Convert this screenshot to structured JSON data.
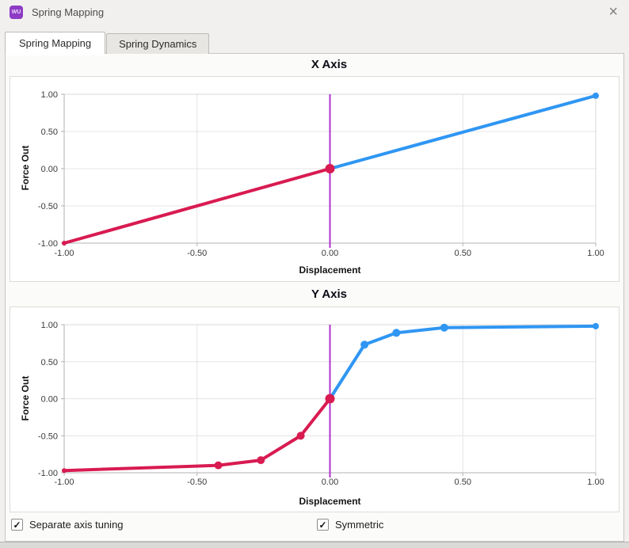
{
  "window": {
    "title": "Spring Mapping",
    "app_icon_text": "WU",
    "close_glyph": "×"
  },
  "tabs": [
    {
      "label": "Spring Mapping",
      "active": true
    },
    {
      "label": "Spring Dynamics",
      "active": false
    }
  ],
  "controls": [
    {
      "label": "Separate axis tuning",
      "checked": true,
      "check_glyph": "✓"
    },
    {
      "label": "Symmetric",
      "checked": true,
      "check_glyph": "✓"
    }
  ],
  "colors": {
    "negative_series": "#d81b51",
    "positive_series": "#2f96f3",
    "zero_line": "#ad34cf",
    "grid": "#e4e4e4",
    "axis": "#b2b2b2",
    "frame": "#d8d8d8"
  },
  "chart_data": [
    {
      "type": "line",
      "title": "X Axis",
      "xlabel": "Displacement",
      "ylabel": "Force Out",
      "xlim": [
        -1,
        1
      ],
      "ylim": [
        -1,
        1
      ],
      "grid": true,
      "legend": "none",
      "zero_line_x": 0,
      "xtick_values": [
        -1,
        -0.5,
        0,
        0.5,
        1
      ],
      "xtick_labels": [
        "-1.00",
        "-0.50",
        "0.00",
        "0.50",
        "1.00"
      ],
      "ytick_values": [
        1,
        0.5,
        0,
        -0.5,
        -1
      ],
      "ytick_labels": [
        "1.00",
        "0.50",
        "0.00",
        "-0.50",
        "-1.00"
      ],
      "series": [
        {
          "name": "negative-displacement",
          "color": "#d81b51",
          "points": [
            [
              -1,
              -1
            ],
            [
              0,
              0
            ]
          ],
          "markers": [
            [
              -1,
              -1,
              3
            ],
            [
              0,
              0,
              6
            ]
          ]
        },
        {
          "name": "positive-displacement",
          "color": "#2f96f3",
          "points": [
            [
              0,
              0
            ],
            [
              1,
              0.98
            ]
          ],
          "markers": [
            [
              1,
              0.98,
              4
            ]
          ]
        }
      ]
    },
    {
      "type": "line",
      "title": "Y Axis",
      "xlabel": "Displacement",
      "ylabel": "Force Out",
      "xlim": [
        -1,
        1
      ],
      "ylim": [
        -1,
        1
      ],
      "grid": true,
      "legend": "none",
      "zero_line_x": 0,
      "xtick_values": [
        -1,
        -0.5,
        0,
        0.5,
        1
      ],
      "xtick_labels": [
        "-1.00",
        "-0.50",
        "0.00",
        "0.50",
        "1.00"
      ],
      "ytick_values": [
        1,
        0.5,
        0,
        -0.5,
        -1
      ],
      "ytick_labels": [
        "1.00",
        "0.50",
        "0.00",
        "-0.50",
        "-1.00"
      ],
      "series": [
        {
          "name": "negative-displacement",
          "color": "#d81b51",
          "points": [
            [
              -1,
              -0.97
            ],
            [
              -0.42,
              -0.9
            ],
            [
              -0.26,
              -0.83
            ],
            [
              -0.11,
              -0.5
            ],
            [
              0,
              0
            ]
          ],
          "markers": [
            [
              -1,
              -0.97,
              3
            ],
            [
              -0.42,
              -0.9,
              5
            ],
            [
              -0.26,
              -0.83,
              5
            ],
            [
              -0.11,
              -0.5,
              5
            ],
            [
              0,
              0,
              6
            ]
          ]
        },
        {
          "name": "positive-displacement",
          "color": "#2f96f3",
          "points": [
            [
              0,
              0
            ],
            [
              0.13,
              0.73
            ],
            [
              0.25,
              0.89
            ],
            [
              0.43,
              0.96
            ],
            [
              1,
              0.98
            ]
          ],
          "markers": [
            [
              0.13,
              0.73,
              5
            ],
            [
              0.25,
              0.89,
              5
            ],
            [
              0.43,
              0.96,
              5
            ],
            [
              1,
              0.98,
              4
            ]
          ]
        }
      ]
    }
  ]
}
